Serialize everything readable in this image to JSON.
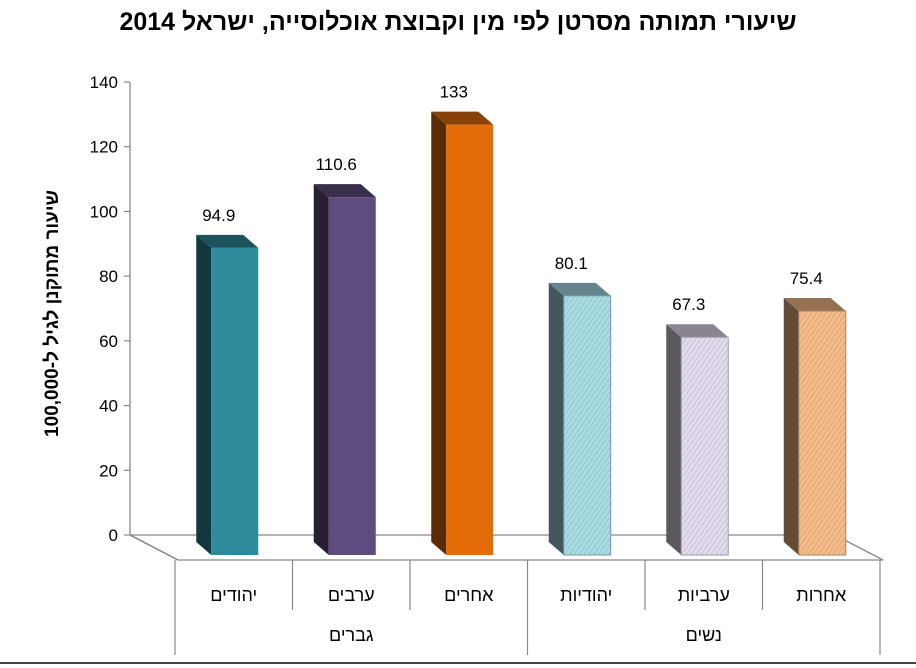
{
  "chart_data": {
    "type": "bar",
    "title": "שיעורי תמותה מסרטן לפי מין וקבוצת אוכלוסייה, ישראל 2014",
    "ylabel": "שיעור מתוקנן לגיל ל-100,000",
    "xlabel": "",
    "ylim": [
      0,
      140
    ],
    "yticks": [
      0,
      20,
      40,
      60,
      80,
      100,
      120,
      140
    ],
    "categories": [
      "יהודים",
      "ערבים",
      "אחרים",
      "יהודיות",
      "ערביות",
      "אחרות"
    ],
    "values": [
      94.9,
      110.6,
      133,
      80.1,
      67.3,
      75.4
    ],
    "value_labels": [
      "94.9",
      "110.6",
      "133",
      "80.1",
      "67.3",
      "75.4"
    ],
    "groups": [
      {
        "label": "גברים",
        "categories": [
          "יהודים",
          "ערבים",
          "אחרים"
        ]
      },
      {
        "label": "נשים",
        "categories": [
          "יהודיות",
          "ערביות",
          "אחרות"
        ]
      }
    ],
    "colors": [
      "#2e8b9a",
      "#5f4c7e",
      "#e36c0a",
      "#a9dde6",
      "#e4dcee",
      "#f6bd8a"
    ],
    "patterned": [
      false,
      false,
      false,
      true,
      true,
      true
    ],
    "grid": false,
    "legend": "none",
    "style": "3d-bar"
  }
}
